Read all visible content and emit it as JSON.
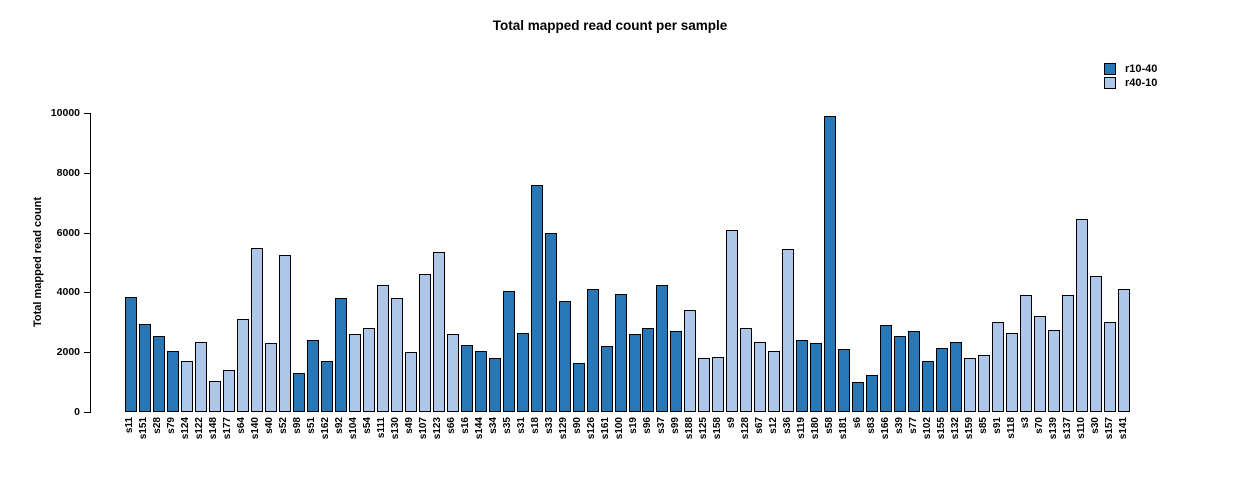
{
  "chart_data": {
    "type": "bar",
    "title": "Total mapped read count per sample",
    "ylabel": "Total mapped read count",
    "xlabel": "",
    "ylim": [
      0,
      10000
    ],
    "yticks": [
      0,
      2000,
      4000,
      6000,
      8000,
      10000
    ],
    "grid": false,
    "legend_position": "top-right",
    "legend": [
      {
        "label": "r10-40",
        "color": "#2878b8"
      },
      {
        "label": "r40-10",
        "color": "#aec6e8"
      }
    ],
    "bar_border_color": "#000000",
    "samples": [
      {
        "name": "s11",
        "group": "r10-40",
        "value": 3850
      },
      {
        "name": "s151",
        "group": "r10-40",
        "value": 2950
      },
      {
        "name": "s28",
        "group": "r10-40",
        "value": 2550
      },
      {
        "name": "s79",
        "group": "r10-40",
        "value": 2050
      },
      {
        "name": "s124",
        "group": "r40-10",
        "value": 1700
      },
      {
        "name": "s122",
        "group": "r40-10",
        "value": 2350
      },
      {
        "name": "s148",
        "group": "r40-10",
        "value": 1050
      },
      {
        "name": "s177",
        "group": "r40-10",
        "value": 1400
      },
      {
        "name": "s64",
        "group": "r40-10",
        "value": 3100
      },
      {
        "name": "s140",
        "group": "r40-10",
        "value": 5500
      },
      {
        "name": "s40",
        "group": "r40-10",
        "value": 2300
      },
      {
        "name": "s52",
        "group": "r40-10",
        "value": 5250
      },
      {
        "name": "s98",
        "group": "r10-40",
        "value": 1300
      },
      {
        "name": "s51",
        "group": "r10-40",
        "value": 2400
      },
      {
        "name": "s162",
        "group": "r10-40",
        "value": 1700
      },
      {
        "name": "s92",
        "group": "r10-40",
        "value": 3800
      },
      {
        "name": "s104",
        "group": "r40-10",
        "value": 2600
      },
      {
        "name": "s54",
        "group": "r40-10",
        "value": 2800
      },
      {
        "name": "s111",
        "group": "r40-10",
        "value": 4250
      },
      {
        "name": "s130",
        "group": "r40-10",
        "value": 3800
      },
      {
        "name": "s49",
        "group": "r40-10",
        "value": 2000
      },
      {
        "name": "s107",
        "group": "r40-10",
        "value": 4600
      },
      {
        "name": "s123",
        "group": "r40-10",
        "value": 5350
      },
      {
        "name": "s66",
        "group": "r40-10",
        "value": 2600
      },
      {
        "name": "s16",
        "group": "r10-40",
        "value": 2250
      },
      {
        "name": "s144",
        "group": "r10-40",
        "value": 2050
      },
      {
        "name": "s34",
        "group": "r10-40",
        "value": 1800
      },
      {
        "name": "s35",
        "group": "r10-40",
        "value": 4050
      },
      {
        "name": "s31",
        "group": "r10-40",
        "value": 2650
      },
      {
        "name": "s18",
        "group": "r10-40",
        "value": 7600
      },
      {
        "name": "s33",
        "group": "r10-40",
        "value": 6000
      },
      {
        "name": "s129",
        "group": "r10-40",
        "value": 3700
      },
      {
        "name": "s90",
        "group": "r10-40",
        "value": 1650
      },
      {
        "name": "s126",
        "group": "r10-40",
        "value": 4100
      },
      {
        "name": "s161",
        "group": "r10-40",
        "value": 2200
      },
      {
        "name": "s100",
        "group": "r10-40",
        "value": 3950
      },
      {
        "name": "s19",
        "group": "r10-40",
        "value": 2600
      },
      {
        "name": "s96",
        "group": "r10-40",
        "value": 2800
      },
      {
        "name": "s37",
        "group": "r10-40",
        "value": 4250
      },
      {
        "name": "s99",
        "group": "r10-40",
        "value": 2700
      },
      {
        "name": "s188",
        "group": "r40-10",
        "value": 3400
      },
      {
        "name": "s125",
        "group": "r40-10",
        "value": 1800
      },
      {
        "name": "s158",
        "group": "r40-10",
        "value": 1850
      },
      {
        "name": "s9",
        "group": "r40-10",
        "value": 6100
      },
      {
        "name": "s128",
        "group": "r40-10",
        "value": 2800
      },
      {
        "name": "s67",
        "group": "r40-10",
        "value": 2350
      },
      {
        "name": "s12",
        "group": "r40-10",
        "value": 2050
      },
      {
        "name": "s36",
        "group": "r40-10",
        "value": 5450
      },
      {
        "name": "s119",
        "group": "r10-40",
        "value": 2400
      },
      {
        "name": "s180",
        "group": "r10-40",
        "value": 2300
      },
      {
        "name": "s58",
        "group": "r10-40",
        "value": 9900
      },
      {
        "name": "s181",
        "group": "r10-40",
        "value": 2100
      },
      {
        "name": "s6",
        "group": "r10-40",
        "value": 1000
      },
      {
        "name": "s83",
        "group": "r10-40",
        "value": 1250
      },
      {
        "name": "s166",
        "group": "r10-40",
        "value": 2900
      },
      {
        "name": "s39",
        "group": "r10-40",
        "value": 2550
      },
      {
        "name": "s77",
        "group": "r10-40",
        "value": 2700
      },
      {
        "name": "s102",
        "group": "r10-40",
        "value": 1700
      },
      {
        "name": "s155",
        "group": "r10-40",
        "value": 2150
      },
      {
        "name": "s132",
        "group": "r10-40",
        "value": 2350
      },
      {
        "name": "s159",
        "group": "r40-10",
        "value": 1800
      },
      {
        "name": "s85",
        "group": "r40-10",
        "value": 1900
      },
      {
        "name": "s91",
        "group": "r40-10",
        "value": 3000
      },
      {
        "name": "s118",
        "group": "r40-10",
        "value": 2650
      },
      {
        "name": "s3",
        "group": "r40-10",
        "value": 3900
      },
      {
        "name": "s70",
        "group": "r40-10",
        "value": 3200
      },
      {
        "name": "s139",
        "group": "r40-10",
        "value": 2750
      },
      {
        "name": "s137",
        "group": "r40-10",
        "value": 3900
      },
      {
        "name": "s110",
        "group": "r40-10",
        "value": 6450
      },
      {
        "name": "s30",
        "group": "r40-10",
        "value": 4550
      },
      {
        "name": "s157",
        "group": "r40-10",
        "value": 3000
      },
      {
        "name": "s141",
        "group": "r40-10",
        "value": 4100
      }
    ]
  }
}
